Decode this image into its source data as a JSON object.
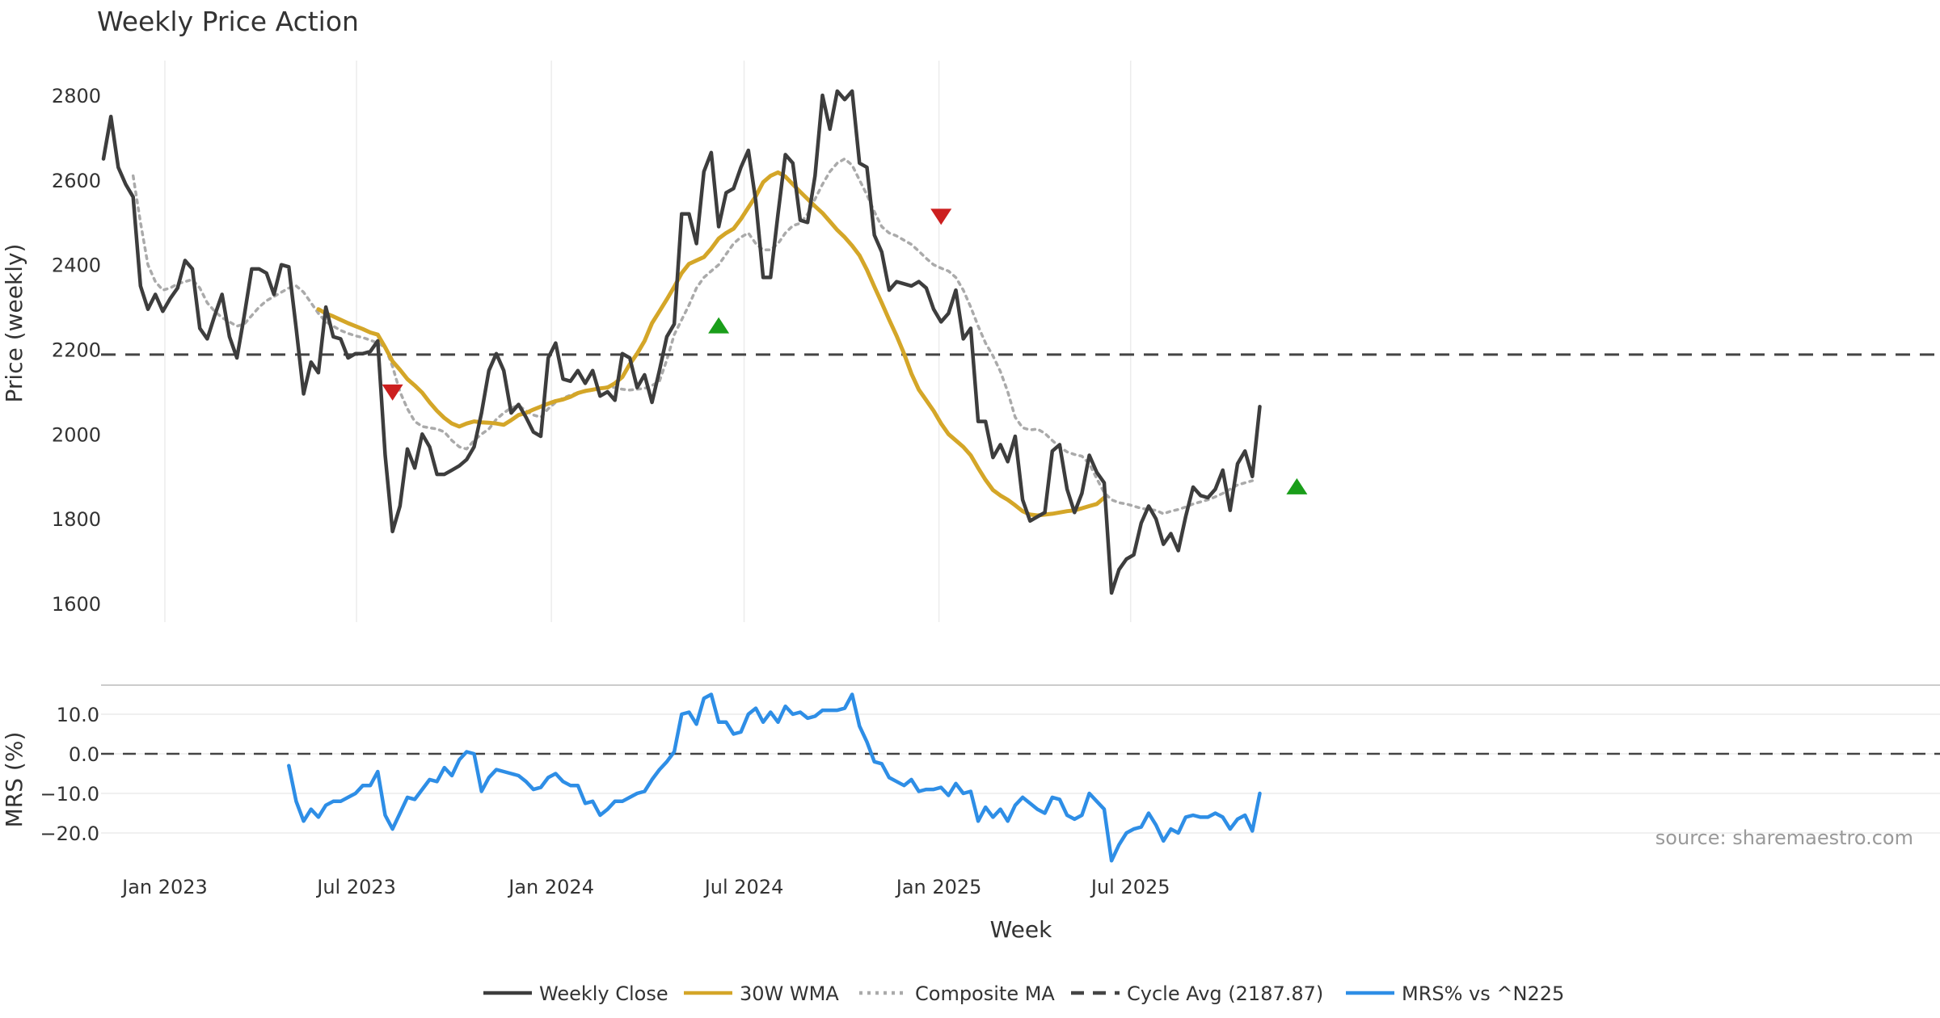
{
  "chart_data": [
    {
      "type": "line",
      "panel": "price",
      "title": "Weekly Price Action",
      "ylabel": "Price (weekly)",
      "xlabel": "Week",
      "ylim": [
        1560,
        2880
      ],
      "yticks": [
        1600,
        1800,
        2000,
        2200,
        2400,
        2600,
        2800
      ],
      "x_start": "2022-11-04",
      "x_step_weeks": 1,
      "x_ticks": [
        {
          "date": "2023-01-01",
          "label": "Jan 2023"
        },
        {
          "date": "2023-07-01",
          "label": "Jul 2023"
        },
        {
          "date": "2024-01-01",
          "label": "Jan 2024"
        },
        {
          "date": "2024-07-01",
          "label": "Jul 2024"
        },
        {
          "date": "2025-01-01",
          "label": "Jan 2025"
        },
        {
          "date": "2025-07-01",
          "label": "Jul 2025"
        }
      ],
      "grid": true,
      "series": [
        {
          "name": "Weekly Close",
          "start_index": 0,
          "values": [
            2650,
            2750,
            2630,
            2590,
            2560,
            2350,
            2295,
            2330,
            2290,
            2320,
            2345,
            2410,
            2390,
            2250,
            2225,
            2280,
            2330,
            2230,
            2180,
            2280,
            2390,
            2390,
            2380,
            2330,
            2400,
            2395,
            2250,
            2095,
            2170,
            2145,
            2300,
            2230,
            2225,
            2180,
            2190,
            2190,
            2195,
            2220,
            1950,
            1770,
            1830,
            1965,
            1920,
            2000,
            1970,
            1905,
            1905,
            1915,
            1925,
            1940,
            1970,
            2050,
            2150,
            2190,
            2150,
            2050,
            2070,
            2040,
            2005,
            1995,
            2180,
            2215,
            2130,
            2125,
            2150,
            2120,
            2150,
            2090,
            2100,
            2080,
            2190,
            2180,
            2110,
            2140,
            2075,
            2150,
            2230,
            2260,
            2520,
            2520,
            2450,
            2620,
            2665,
            2490,
            2570,
            2580,
            2630,
            2670,
            2550,
            2370,
            2370,
            2520,
            2660,
            2640,
            2505,
            2500,
            2610,
            2800,
            2720,
            2810,
            2790,
            2810,
            2640,
            2630,
            2470,
            2430,
            2340,
            2360,
            2355,
            2350,
            2360,
            2345,
            2295,
            2265,
            2285,
            2340,
            2225,
            2250,
            2030,
            2030,
            1945,
            1975,
            1935,
            1995,
            1845,
            1795,
            1805,
            1815,
            1960,
            1975,
            1870,
            1815,
            1860,
            1950,
            1910,
            1885,
            1625,
            1680,
            1705,
            1715,
            1790,
            1830,
            1800,
            1740,
            1765,
            1725,
            1805,
            1875,
            1855,
            1850,
            1870,
            1915,
            1820,
            1930,
            1960,
            1900,
            2065
          ]
        },
        {
          "name": "30W WMA",
          "start_index": 29,
          "values": [
            2295,
            2285,
            2278,
            2270,
            2262,
            2255,
            2248,
            2240,
            2235,
            2205,
            2172,
            2152,
            2130,
            2115,
            2098,
            2075,
            2055,
            2038,
            2025,
            2018,
            2025,
            2030,
            2028,
            2027,
            2025,
            2022,
            2033,
            2045,
            2050,
            2058,
            2065,
            2072,
            2078,
            2082,
            2088,
            2097,
            2102,
            2105,
            2108,
            2110,
            2120,
            2135,
            2165,
            2190,
            2220,
            2262,
            2290,
            2318,
            2348,
            2380,
            2402,
            2410,
            2418,
            2438,
            2462,
            2475,
            2485,
            2508,
            2535,
            2562,
            2595,
            2610,
            2618,
            2608,
            2590,
            2572,
            2555,
            2538,
            2522,
            2502,
            2482,
            2465,
            2445,
            2422,
            2388,
            2348,
            2310,
            2270,
            2232,
            2190,
            2143,
            2105,
            2080,
            2055,
            2025,
            2000,
            1985,
            1970,
            1950,
            1920,
            1892,
            1868,
            1855,
            1845,
            1832,
            1818,
            1810,
            1808,
            1810,
            1812,
            1815,
            1818,
            1820,
            1825,
            1830,
            1835,
            1850
          ]
        },
        {
          "name": "Composite MA",
          "start_index": 4,
          "values": [
            2610,
            2500,
            2400,
            2360,
            2340,
            2345,
            2355,
            2360,
            2365,
            2345,
            2310,
            2290,
            2275,
            2265,
            2255,
            2260,
            2280,
            2300,
            2315,
            2325,
            2335,
            2345,
            2350,
            2335,
            2310,
            2285,
            2265,
            2255,
            2245,
            2238,
            2232,
            2228,
            2222,
            2215,
            2205,
            2160,
            2100,
            2060,
            2030,
            2018,
            2015,
            2012,
            2005,
            1985,
            1970,
            1965,
            1985,
            2000,
            2012,
            2035,
            2050,
            2062,
            2068,
            2055,
            2045,
            2040,
            2060,
            2075,
            2085,
            2092,
            2098,
            2100,
            2104,
            2108,
            2112,
            2110,
            2106,
            2104,
            2106,
            2108,
            2115,
            2125,
            2175,
            2235,
            2270,
            2305,
            2345,
            2370,
            2385,
            2400,
            2425,
            2450,
            2465,
            2475,
            2450,
            2435,
            2435,
            2450,
            2475,
            2492,
            2498,
            2520,
            2555,
            2590,
            2620,
            2640,
            2650,
            2635,
            2600,
            2565,
            2525,
            2490,
            2475,
            2468,
            2458,
            2448,
            2432,
            2415,
            2400,
            2392,
            2385,
            2370,
            2340,
            2300,
            2255,
            2215,
            2185,
            2148,
            2100,
            2040,
            2015,
            2010,
            2012,
            2002,
            1985,
            1970,
            1958,
            1952,
            1948,
            1930,
            1895,
            1862,
            1845,
            1838,
            1835,
            1830,
            1825,
            1822,
            1820,
            1812,
            1818,
            1822,
            1828,
            1835,
            1840,
            1845,
            1852,
            1860,
            1870,
            1880,
            1885,
            1890
          ]
        },
        {
          "name": "Cycle Avg (2187.87)",
          "constant": 2187.87
        }
      ],
      "signals": [
        {
          "type": "sell",
          "index": 39,
          "value": 2100
        },
        {
          "type": "buy",
          "index": 83,
          "value": 2255
        },
        {
          "type": "sell",
          "index": 113,
          "value": 2515
        },
        {
          "type": "buy",
          "index": 161,
          "value": 1875
        }
      ]
    },
    {
      "type": "line",
      "panel": "mrs",
      "ylabel": "MRS (%)",
      "ylim": [
        -28,
        18
      ],
      "yticks": [
        10,
        0,
        -10,
        -20
      ],
      "ytick_labels": [
        "10.0",
        "0.0",
        "−10.0",
        "−20.0"
      ],
      "zero_line": true,
      "series": [
        {
          "name": "MRS% vs ^N225",
          "start_index": 25,
          "values": [
            -3,
            -12,
            -17,
            -14,
            -16,
            -13,
            -12,
            -12,
            -11,
            -10,
            -8,
            -8,
            -4.5,
            -15.5,
            -19,
            -15,
            -11,
            -11.5,
            -9,
            -6.5,
            -7,
            -3.5,
            -5.5,
            -1.5,
            0.5,
            0,
            -9.5,
            -6,
            -4,
            -4.5,
            -5,
            -5.5,
            -7,
            -9,
            -8.5,
            -6,
            -5,
            -7,
            -8,
            -8,
            -12.5,
            -12,
            -15.5,
            -14,
            -12,
            -12,
            -11,
            -10,
            -9.5,
            -6.5,
            -4,
            -2,
            0.5,
            10,
            10.5,
            7.5,
            14,
            15,
            8,
            8,
            5,
            5.5,
            10,
            11.5,
            8,
            10.5,
            8,
            12,
            10,
            10.5,
            9,
            9.5,
            11,
            11,
            11,
            11.5,
            15,
            7,
            3,
            -2,
            -2.5,
            -6,
            -7,
            -8,
            -6.5,
            -9.5,
            -9,
            -9,
            -8.5,
            -10.5,
            -7.5,
            -10,
            -9.5,
            -17,
            -13.5,
            -16,
            -14,
            -17,
            -13,
            -11,
            -12.5,
            -14,
            -15,
            -11,
            -11.5,
            -15.5,
            -16.5,
            -15.5,
            -10,
            -12,
            -14,
            -27,
            -23,
            -20,
            -19,
            -18.5,
            -15,
            -18,
            -22,
            -19,
            -20,
            -16,
            -15.5,
            -16,
            -16,
            -15,
            -16,
            -19,
            -16.5,
            -15.5,
            -19.5,
            -10
          ]
        }
      ]
    }
  ],
  "legend": [
    {
      "label": "Weekly Close",
      "color": "#3d3d3d",
      "style": "solid"
    },
    {
      "label": "30W WMA",
      "color": "#d4a628",
      "style": "solid"
    },
    {
      "label": "Composite MA",
      "color": "#aaaaaa",
      "style": "dotted"
    },
    {
      "label": "Cycle Avg (2187.87)",
      "color": "#444444",
      "style": "dashed"
    },
    {
      "label": "MRS% vs ^N225",
      "color": "#2e8ee6",
      "style": "solid"
    }
  ],
  "source": "source: sharemaestro.com",
  "colors": {
    "close": "#3d3d3d",
    "wma": "#d4a628",
    "composite": "#aaaaaa",
    "cycle": "#444444",
    "mrs": "#2e8ee6",
    "buy": "#1a9e1a",
    "sell": "#cc1f1f",
    "grid": "#ececec"
  }
}
